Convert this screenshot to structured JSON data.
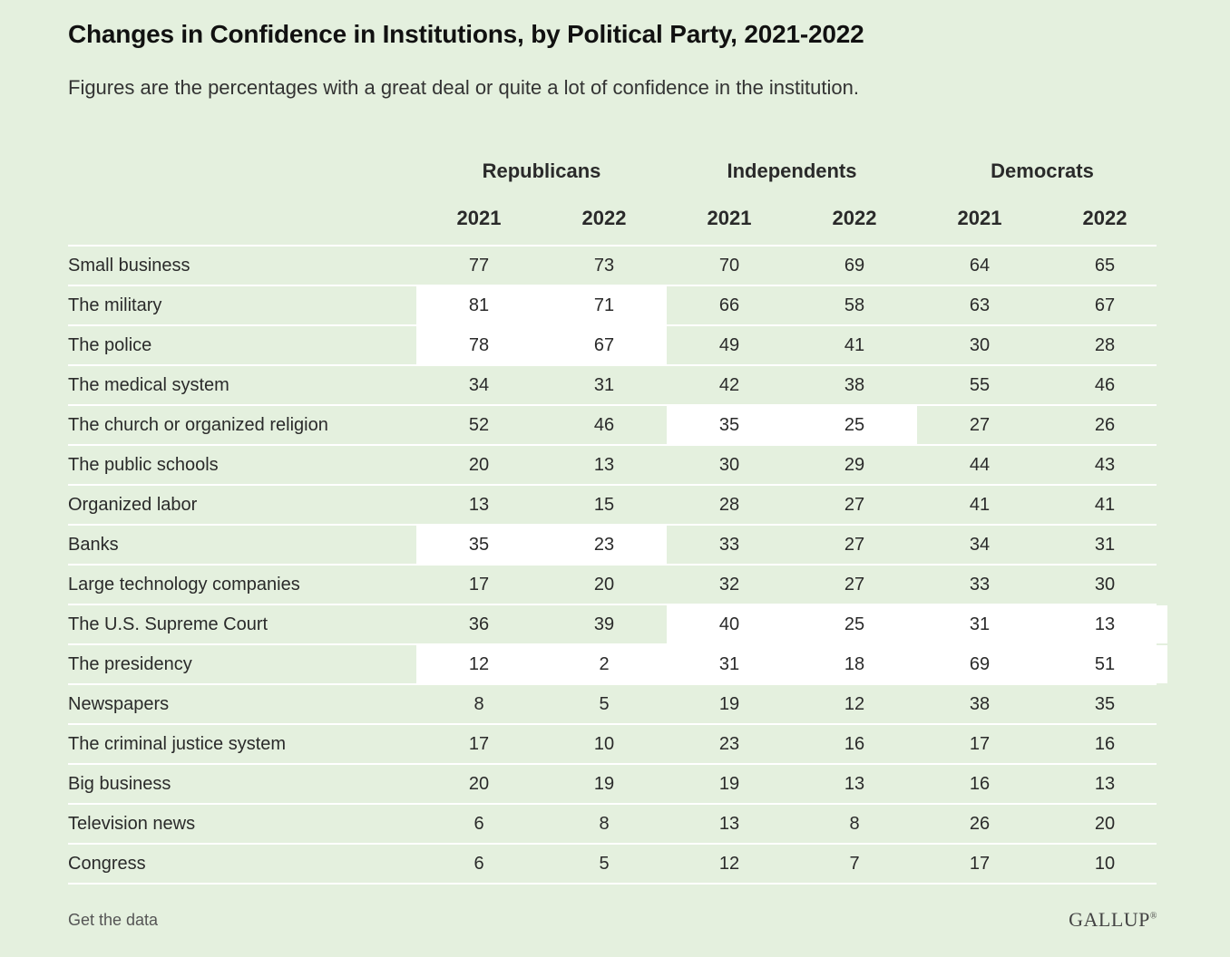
{
  "title": "Changes in Confidence in Institutions, by Political Party, 2021-2022",
  "subtitle": "Figures are the percentages with a great deal or quite a lot of confidence in the institution.",
  "footer": {
    "link": "Get the data",
    "logo": "GALLUP"
  },
  "chart_data": {
    "type": "table",
    "groups": [
      "Republicans",
      "Independents",
      "Democrats"
    ],
    "years": [
      "2021",
      "2022",
      "2021",
      "2022",
      "2021",
      "2022"
    ],
    "rows": [
      {
        "name": "Small business",
        "values": [
          "77",
          "73",
          "70",
          "69",
          "64",
          "65"
        ],
        "highlight": [
          false,
          false,
          false
        ]
      },
      {
        "name": "The military",
        "values": [
          "81",
          "71",
          "66",
          "58",
          "63",
          "67"
        ],
        "highlight": [
          true,
          false,
          false
        ]
      },
      {
        "name": "The police",
        "values": [
          "78",
          "67",
          "49",
          "41",
          "30",
          "28"
        ],
        "highlight": [
          true,
          false,
          false
        ]
      },
      {
        "name": "The medical system",
        "values": [
          "34",
          "31",
          "42",
          "38",
          "55",
          "46"
        ],
        "highlight": [
          false,
          false,
          false
        ]
      },
      {
        "name": "The church or organized religion",
        "values": [
          "52",
          "46",
          "35",
          "25",
          "27",
          "26"
        ],
        "highlight": [
          false,
          true,
          false
        ]
      },
      {
        "name": "The public schools",
        "values": [
          "20",
          "13",
          "30",
          "29",
          "44",
          "43"
        ],
        "highlight": [
          false,
          false,
          false
        ]
      },
      {
        "name": "Organized labor",
        "values": [
          "13",
          "15",
          "28",
          "27",
          "41",
          "41"
        ],
        "highlight": [
          false,
          false,
          false
        ]
      },
      {
        "name": "Banks",
        "values": [
          "35",
          "23",
          "33",
          "27",
          "34",
          "31"
        ],
        "highlight": [
          true,
          false,
          false
        ]
      },
      {
        "name": "Large technology companies",
        "values": [
          "17",
          "20",
          "32",
          "27",
          "33",
          "30"
        ],
        "highlight": [
          false,
          false,
          false
        ]
      },
      {
        "name": "The U.S. Supreme Court",
        "values": [
          "36",
          "39",
          "40",
          "25",
          "31",
          "13"
        ],
        "highlight": [
          false,
          true,
          true
        ]
      },
      {
        "name": "The presidency",
        "values": [
          "12",
          "2",
          "31",
          "18",
          "69",
          "51"
        ],
        "highlight": [
          true,
          true,
          true
        ]
      },
      {
        "name": "Newspapers",
        "values": [
          "8",
          "5",
          "19",
          "12",
          "38",
          "35"
        ],
        "highlight": [
          false,
          false,
          false
        ]
      },
      {
        "name": "The criminal justice system",
        "values": [
          "17",
          "10",
          "23",
          "16",
          "17",
          "16"
        ],
        "highlight": [
          false,
          false,
          false
        ]
      },
      {
        "name": "Big business",
        "values": [
          "20",
          "19",
          "19",
          "13",
          "16",
          "13"
        ],
        "highlight": [
          false,
          false,
          false
        ]
      },
      {
        "name": "Television news",
        "values": [
          "6",
          "8",
          "13",
          "8",
          "26",
          "20"
        ],
        "highlight": [
          false,
          false,
          false
        ]
      },
      {
        "name": "Congress",
        "values": [
          "6",
          "5",
          "12",
          "7",
          "17",
          "10"
        ],
        "highlight": [
          false,
          false,
          false
        ]
      }
    ]
  }
}
